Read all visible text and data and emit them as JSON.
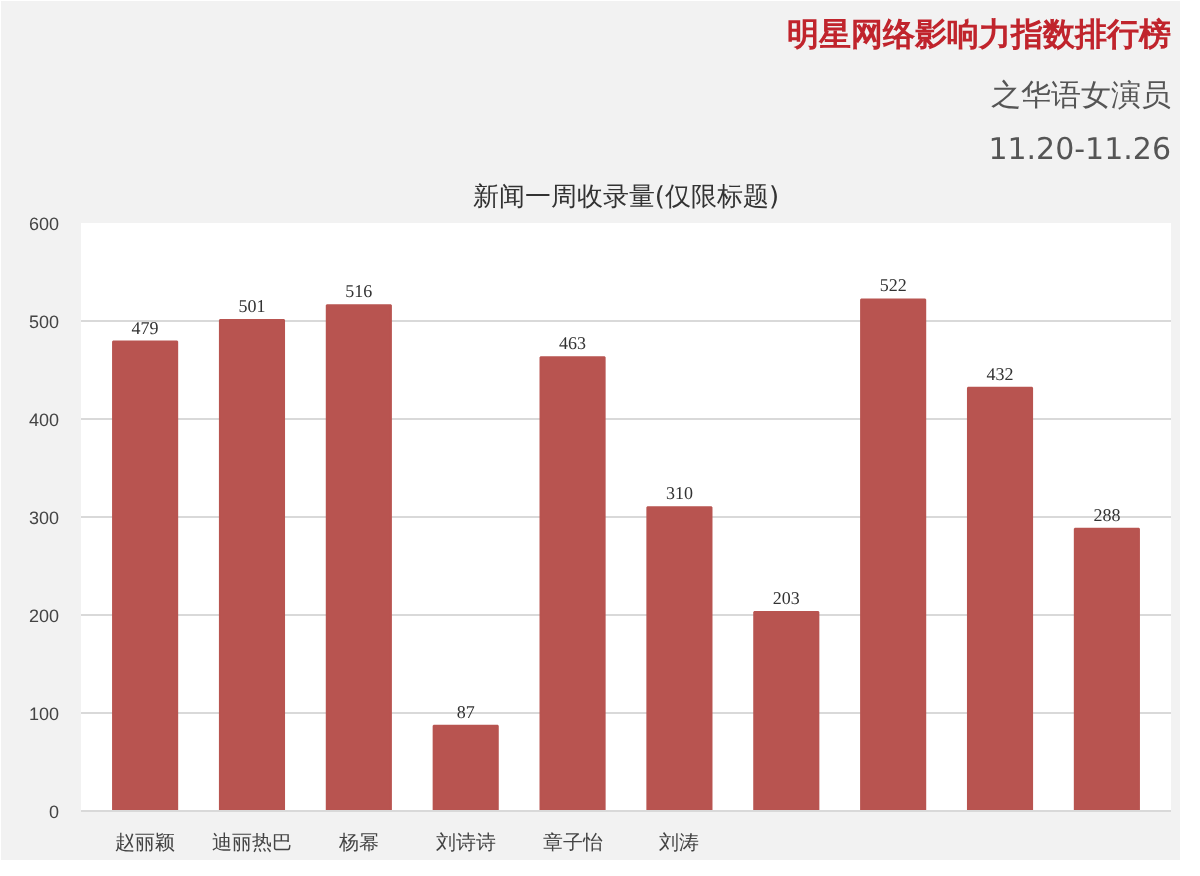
{
  "chart_data": {
    "type": "bar",
    "title": "明星网络影响力指数排行榜",
    "subtitle": "之华语女演员",
    "annotations": [
      "11.20-11.26",
      "新闻一周收录量(仅限标题)"
    ],
    "categories": [
      "赵丽颖",
      "迪丽热巴",
      "杨幂",
      "刘诗诗",
      "章子怡",
      "刘涛",
      null,
      null,
      null,
      null
    ],
    "values": [
      479,
      501,
      516,
      87,
      463,
      310,
      203,
      522,
      432,
      288
    ],
    "color": "#b85450",
    "ylim": [
      0,
      600
    ],
    "yticks": [
      0,
      100,
      200,
      300,
      400,
      500,
      600
    ],
    "grid": "y",
    "data_labels": true
  }
}
